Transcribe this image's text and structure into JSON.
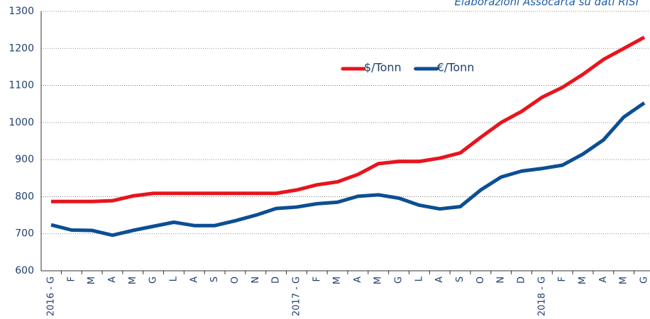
{
  "chart_data": {
    "type": "line",
    "annotation": "Elaborazioni Assocarta su dati RISI",
    "categories": [
      "2016 - G",
      "F",
      "M",
      "A",
      "M",
      "G",
      "L",
      "A",
      "S",
      "O",
      "N",
      "D",
      "2017 - G",
      "F",
      "M",
      "A",
      "M",
      "G",
      "L",
      "A",
      "S",
      "O",
      "N",
      "D",
      "2018 - G",
      "F",
      "M",
      "A",
      "M",
      "G"
    ],
    "series": [
      {
        "name": "$/Tonn",
        "color": "#e8141c",
        "values": [
          787,
          787,
          787,
          789,
          802,
          809,
          809,
          809,
          809,
          809,
          809,
          809,
          818,
          832,
          840,
          860,
          889,
          895,
          895,
          904,
          918,
          960,
          1000,
          1030,
          1068,
          1095,
          1130,
          1170,
          1200,
          1230
        ]
      },
      {
        "name": "€/Tonn",
        "color": "#0b4f93",
        "values": [
          724,
          710,
          709,
          696,
          709,
          720,
          731,
          722,
          722,
          735,
          750,
          768,
          772,
          781,
          785,
          801,
          805,
          796,
          777,
          767,
          773,
          818,
          853,
          869,
          876,
          885,
          915,
          953,
          1015,
          1053
        ]
      }
    ],
    "ylim": [
      600,
      1300
    ],
    "yticks": [
      600,
      700,
      800,
      900,
      1000,
      1100,
      1200,
      1300
    ],
    "grid": true
  }
}
